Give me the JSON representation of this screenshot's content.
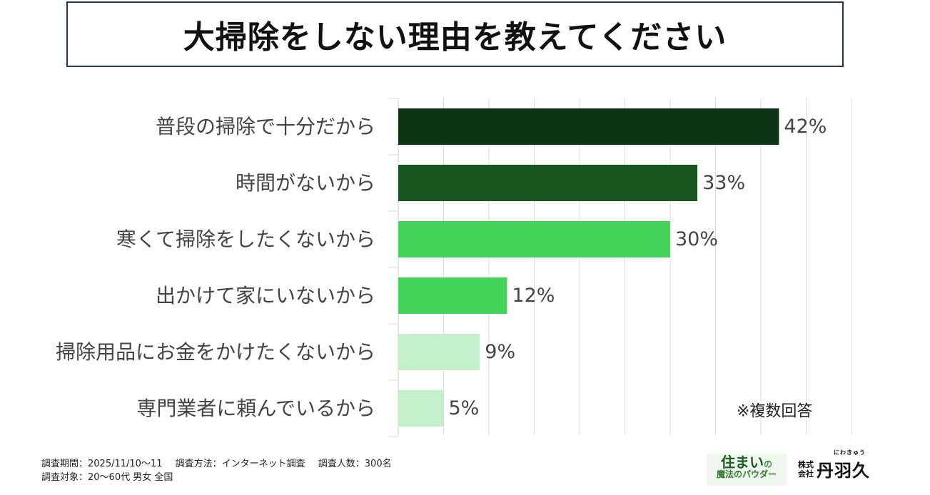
{
  "title": "大掃除をしない理由を教えてください",
  "chart_data": {
    "type": "bar",
    "orientation": "horizontal",
    "categories": [
      "普段の掃除で十分だから",
      "時間がないから",
      "寒くて掃除をしたくないから",
      "出かけて家にいないから",
      "掃除用品にお金をかけたくないから",
      "専門業者に頼んでいるから"
    ],
    "values": [
      42,
      33,
      30,
      12,
      9,
      5
    ],
    "value_labels": [
      "42%",
      "33%",
      "30%",
      "12%",
      "9%",
      "5%"
    ],
    "bar_colors": [
      "#0f3614",
      "#175420",
      "#45d35a",
      "#45d35a",
      "#c3f0c9",
      "#c3f0c9"
    ],
    "xlim": [
      0,
      50
    ],
    "grid": true,
    "note": "※複数回答"
  },
  "footer": {
    "period": "調査期間：2025/11/10〜11",
    "method": "調査方法：インターネット調査",
    "respondents": "調査人数：300名",
    "target": "調査対象：20〜60代 男女 全国"
  },
  "logos": {
    "brand_top": "住まい",
    "brand_no": "の",
    "brand_bottom": "魔法のパウダー",
    "company_small": "株式会社",
    "company_name": "丹羽久",
    "company_ruby": "にわきゅう"
  }
}
